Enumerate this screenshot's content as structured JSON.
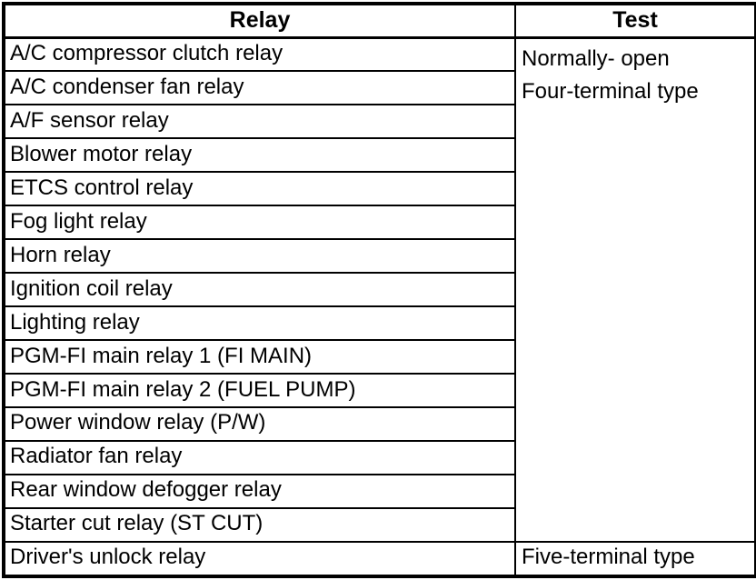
{
  "table": {
    "headers": [
      "Relay",
      "Test"
    ],
    "relays": [
      "A/C compressor clutch relay",
      "A/C condenser fan relay",
      "A/F sensor relay",
      "Blower motor relay",
      "ETCS control relay",
      "Fog light relay",
      "Horn relay",
      "Ignition coil relay",
      "Lighting relay",
      "PGM-FI main relay 1 (FI MAIN)",
      "PGM-FI main relay 2 (FUEL PUMP)",
      "Power window relay (P/W)",
      "Radiator fan relay",
      "Rear window defogger relay",
      "Starter cut relay (ST CUT)",
      "Driver's unlock relay"
    ],
    "merged_test_lines": [
      "Normally- open",
      "Four-terminal type"
    ],
    "last_test": "Five-terminal type",
    "colors": {
      "border": "#000000",
      "text": "#000000",
      "background": "#ffffff"
    }
  }
}
